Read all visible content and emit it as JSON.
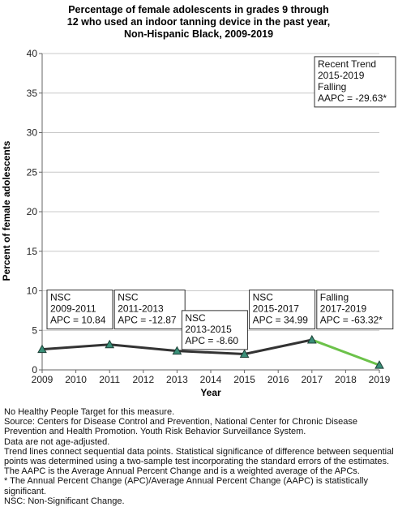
{
  "chart_data": {
    "type": "line",
    "title_lines": [
      "Percentage of female adolescents in grades 9 through",
      "12 who used an indoor tanning device in the past year,",
      "Non-Hispanic Black,  2009-2019"
    ],
    "xlabel": "Year",
    "ylabel": "Percent of female adolescents",
    "xlim": [
      2009,
      2019
    ],
    "ylim": [
      0,
      40
    ],
    "x_ticks": [
      "2009",
      "2010",
      "2011",
      "2012",
      "2013",
      "2014",
      "2015",
      "2016",
      "2017",
      "2018",
      "2019"
    ],
    "y_ticks": [
      "0",
      "5",
      "10",
      "15",
      "20",
      "25",
      "30",
      "35",
      "40"
    ],
    "grid": true,
    "series": [
      {
        "x": [
          2009,
          2011,
          2013,
          2015,
          2017,
          2019
        ],
        "values": [
          2.6,
          3.2,
          2.4,
          2.0,
          3.8,
          0.6
        ],
        "segment_colors": [
          "#333333",
          "#333333",
          "#333333",
          "#333333",
          "#6cc24a"
        ]
      }
    ],
    "annotations": [
      {
        "anchor_x": 2009,
        "anchor_y": 10.1,
        "lines": [
          "NSC",
          "2009-2011",
          "APC = 10.84"
        ]
      },
      {
        "anchor_x": 2011,
        "anchor_y": 10.1,
        "lines": [
          "NSC",
          "2011-2013",
          "APC = -12.87"
        ]
      },
      {
        "anchor_x": 2013,
        "anchor_y": 7.5,
        "lines": [
          "NSC",
          "2013-2015",
          "APC = -8.60"
        ]
      },
      {
        "anchor_x": 2015,
        "anchor_y": 10.1,
        "lines": [
          "NSC",
          "2015-2017",
          "APC = 34.99"
        ]
      },
      {
        "anchor_x": 2017,
        "anchor_y": 10.1,
        "lines": [
          "Falling",
          "2017-2019",
          "APC = -63.32*"
        ]
      },
      {
        "anchor_x": 2017,
        "anchor_y": 39.6,
        "lines": [
          "Recent Trend",
          "2015-2019",
          "Falling",
          "AAPC = -29.63*"
        ]
      }
    ],
    "colors": {
      "line": "#333333",
      "recent_segment": "#6cc24a",
      "marker_fill": "#3a8f78",
      "marker_stroke": "#1c3f35",
      "grid": "#c8c8c8"
    }
  },
  "footnotes": [
    "No Healthy People Target for this measure.",
    "Source: Centers for Disease Control and Prevention, National Center for Chronic Disease Prevention and Health Promotion. Youth Risk Behavior Surveillance System.",
    "Data are not age-adjusted.",
    "Trend lines connect sequential data points. Statistical significance of difference between sequential points was determined using a two-sample test incorporating the standard errors of the estimates.",
    "The AAPC is the Average Annual Percent Change and is a weighted average of the APCs.",
    "* The Annual Percent Change (APC)/Average Annual Percent Change (AAPC) is statistically significant.",
    "NSC: Non-Significant Change."
  ]
}
